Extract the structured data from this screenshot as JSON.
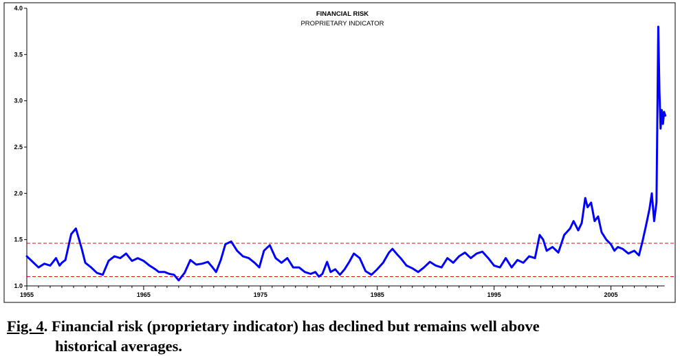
{
  "chart_data": {
    "type": "line",
    "title": "FINANCIAL RISK",
    "subtitle": "PROPRIETARY INDICATOR",
    "xlabel": "",
    "ylabel": "",
    "x_ticks": [
      "1955",
      "1965",
      "1975",
      "1985",
      "1995",
      "2005"
    ],
    "y_ticks": [
      "1.0",
      "1.5",
      "2.0",
      "2.5",
      "3.0",
      "3.5",
      "4.0"
    ],
    "xlim": [
      1955,
      2010.5
    ],
    "ylim": [
      1.0,
      4.0
    ],
    "grid": false,
    "legend": "none",
    "series": [
      {
        "color": "#0000ff",
        "x": [
          1955.0,
          1955.5,
          1956.0,
          1956.5,
          1957.0,
          1957.5,
          1957.8,
          1958.0,
          1958.3,
          1958.8,
          1959.2,
          1959.7,
          1960.0,
          1960.5,
          1961.0,
          1961.5,
          1962.0,
          1962.5,
          1963.0,
          1963.5,
          1964.0,
          1964.5,
          1965.0,
          1965.5,
          1966.0,
          1966.3,
          1966.8,
          1967.2,
          1967.6,
          1968.0,
          1968.5,
          1969.0,
          1969.5,
          1970.0,
          1970.5,
          1970.9,
          1971.2,
          1971.6,
          1972.0,
          1972.5,
          1973.0,
          1973.5,
          1974.0,
          1974.5,
          1974.9,
          1975.3,
          1975.8,
          1976.3,
          1976.8,
          1977.3,
          1977.8,
          1978.3,
          1978.8,
          1979.3,
          1979.7,
          1980.0,
          1980.3,
          1980.7,
          1981.0,
          1981.4,
          1981.8,
          1982.2,
          1982.6,
          1983.0,
          1983.5,
          1984.0,
          1984.5,
          1985.0,
          1985.5,
          1986.0,
          1986.3,
          1986.7,
          1987.0,
          1987.5,
          1988.0,
          1988.5,
          1989.0,
          1989.5,
          1990.0,
          1990.5,
          1991.0,
          1991.5,
          1992.0,
          1992.5,
          1993.0,
          1993.5,
          1994.0,
          1994.5,
          1995.0,
          1995.5,
          1996.0,
          1996.5,
          1997.0,
          1997.5,
          1998.0,
          1998.5,
          1998.9,
          1999.2,
          1999.5,
          2000.0,
          2000.5,
          2001.0,
          2001.5,
          2001.8,
          2002.2,
          2002.5,
          2002.8,
          2003.0,
          2003.3,
          2003.6,
          2003.9,
          2004.2,
          2004.6,
          2005.0,
          2005.3,
          2005.6,
          2006.0,
          2006.5,
          2007.0,
          2007.4,
          2007.7,
          2008.0,
          2008.3,
          2008.5,
          2008.7,
          2008.9,
          2009.05,
          2009.15,
          2009.25,
          2009.35,
          2009.45,
          2009.55,
          2009.65
        ],
        "values": [
          1.32,
          1.26,
          1.2,
          1.24,
          1.22,
          1.3,
          1.22,
          1.25,
          1.28,
          1.56,
          1.62,
          1.4,
          1.25,
          1.2,
          1.14,
          1.12,
          1.27,
          1.32,
          1.3,
          1.35,
          1.27,
          1.3,
          1.27,
          1.22,
          1.18,
          1.15,
          1.15,
          1.13,
          1.12,
          1.06,
          1.14,
          1.28,
          1.23,
          1.24,
          1.26,
          1.2,
          1.15,
          1.28,
          1.45,
          1.48,
          1.38,
          1.32,
          1.3,
          1.25,
          1.2,
          1.38,
          1.44,
          1.3,
          1.25,
          1.3,
          1.2,
          1.2,
          1.15,
          1.13,
          1.15,
          1.1,
          1.13,
          1.26,
          1.15,
          1.18,
          1.12,
          1.18,
          1.26,
          1.35,
          1.3,
          1.16,
          1.12,
          1.18,
          1.25,
          1.36,
          1.4,
          1.34,
          1.3,
          1.22,
          1.19,
          1.15,
          1.2,
          1.26,
          1.22,
          1.2,
          1.3,
          1.25,
          1.32,
          1.36,
          1.3,
          1.35,
          1.37,
          1.3,
          1.22,
          1.2,
          1.3,
          1.2,
          1.28,
          1.25,
          1.32,
          1.3,
          1.55,
          1.5,
          1.38,
          1.42,
          1.36,
          1.55,
          1.62,
          1.7,
          1.6,
          1.68,
          1.95,
          1.85,
          1.9,
          1.7,
          1.75,
          1.58,
          1.5,
          1.45,
          1.38,
          1.42,
          1.4,
          1.35,
          1.38,
          1.33,
          1.48,
          1.65,
          1.83,
          2.0,
          1.7,
          1.9,
          3.8,
          3.1,
          2.7,
          2.9,
          2.75,
          2.88,
          2.84
        ]
      }
    ],
    "reference_lines": [
      {
        "label": "",
        "y": 1.46,
        "color": "#ff0000",
        "style": "dashed"
      },
      {
        "label": "",
        "y": 1.1,
        "color": "#ff0000",
        "style": "dashed"
      }
    ]
  },
  "caption": {
    "label": "Fig. 4",
    "line1": ".  Financial risk (proprietary indicator) has declined but remains well above",
    "line2": "historical averages."
  }
}
